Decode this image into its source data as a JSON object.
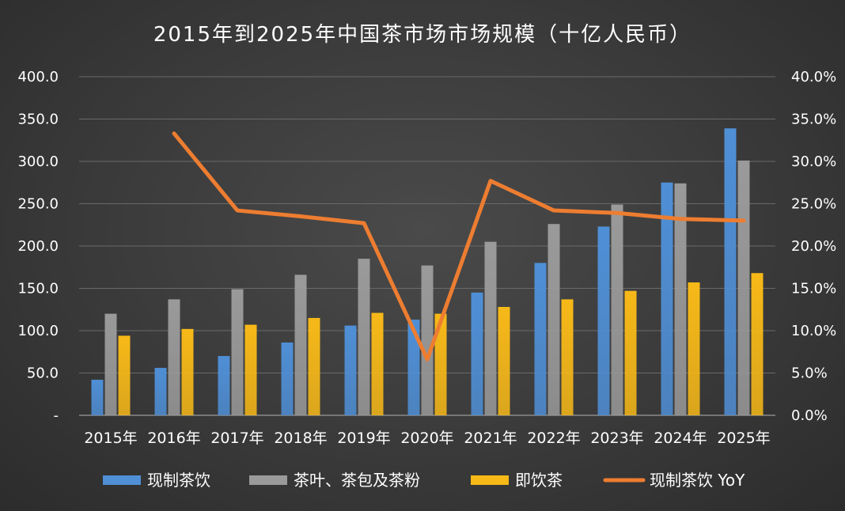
{
  "chart_data": {
    "type": "bar",
    "title": "2015年到2025年中国茶市场市场规模（十亿人民币）",
    "categories": [
      "2015年",
      "2016年",
      "2017年",
      "2018年",
      "2019年",
      "2020年",
      "2021年",
      "2022年",
      "2023年",
      "2024年",
      "2025年"
    ],
    "series": [
      {
        "name": "现制茶饮",
        "kind": "bar",
        "axis": "left",
        "color": "#4f8fd6",
        "values": [
          42,
          56,
          70,
          86,
          106,
          113,
          145,
          180,
          223,
          275,
          339
        ]
      },
      {
        "name": "茶叶、茶包及茶粉",
        "kind": "bar",
        "axis": "left",
        "color": "#9a9a9a",
        "values": [
          120,
          137,
          149,
          166,
          185,
          177,
          205,
          226,
          249,
          274,
          301
        ]
      },
      {
        "name": "即饮茶",
        "kind": "bar",
        "axis": "left",
        "color": "#f7b918",
        "values": [
          94,
          102,
          107,
          115,
          121,
          120,
          128,
          137,
          147,
          157,
          168
        ]
      },
      {
        "name": "现制茶饮 YoY",
        "kind": "line",
        "axis": "right",
        "color": "#ed7d31",
        "values": [
          null,
          33.3,
          24.2,
          23.5,
          22.7,
          6.6,
          27.7,
          24.2,
          23.9,
          23.2,
          23.0
        ]
      }
    ],
    "y_left": {
      "min": 0,
      "max": 400,
      "step": 50,
      "tick_labels": [
        "-",
        "50.0",
        "100.0",
        "150.0",
        "200.0",
        "250.0",
        "300.0",
        "350.0",
        "400.0"
      ]
    },
    "y_right": {
      "min": 0,
      "max": 40,
      "step": 5,
      "tick_labels": [
        "0.0%",
        "5.0%",
        "10.0%",
        "15.0%",
        "20.0%",
        "25.0%",
        "30.0%",
        "35.0%",
        "40.0%"
      ]
    },
    "grid": true,
    "legend_position": "bottom"
  }
}
